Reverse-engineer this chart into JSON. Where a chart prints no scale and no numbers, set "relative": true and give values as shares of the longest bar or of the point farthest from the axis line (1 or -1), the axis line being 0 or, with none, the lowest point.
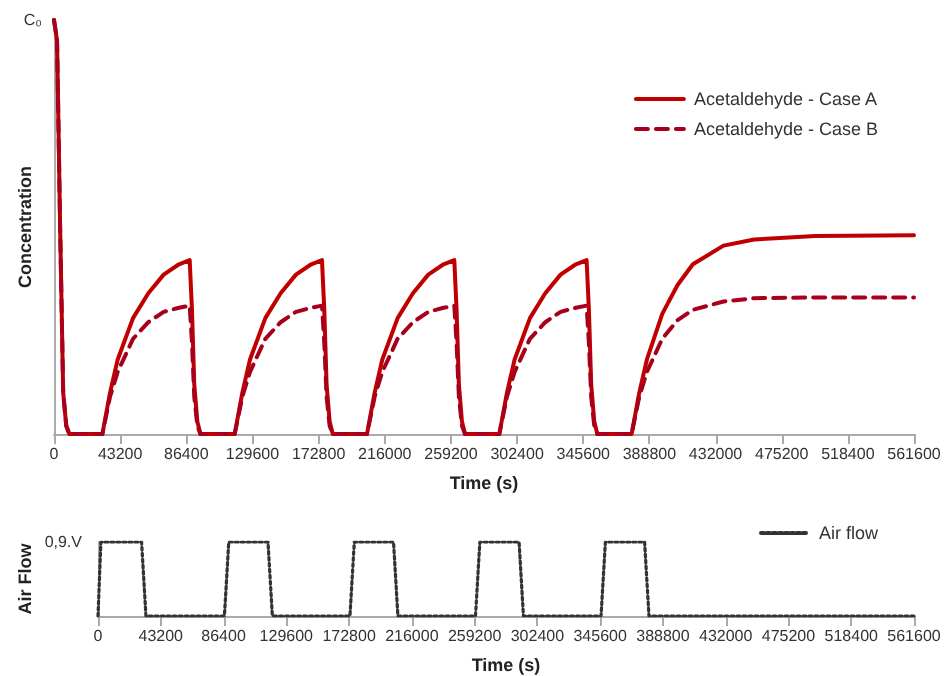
{
  "chart_data": [
    {
      "type": "line",
      "relative": true,
      "xlabel": "Time (s)",
      "ylabel": "Concentration",
      "xlim": [
        0,
        561600
      ],
      "xticks": [
        0,
        43200,
        86400,
        129600,
        172800,
        216000,
        259200,
        302400,
        345600,
        388800,
        432000,
        475200,
        518400,
        561600
      ],
      "grid": false,
      "legend": "top right",
      "marker": "none",
      "annotations": [
        "C₀"
      ],
      "series": [
        {
          "name": "Acetaldehyde - Case A",
          "color": "#c00000",
          "line_style": "solid",
          "x": [
            0,
            2000,
            4000,
            6000,
            8000,
            10000,
            31600,
            36600,
            41600,
            51600,
            61600,
            71600,
            81600,
            88600,
            90100,
            91600,
            93600,
            95600,
            118000,
            123000,
            128000,
            138000,
            148000,
            158000,
            168000,
            175000,
            176500,
            178000,
            180000,
            182000,
            204400,
            209400,
            214400,
            224400,
            234400,
            244400,
            254400,
            261400,
            262900,
            264400,
            266400,
            268400,
            290800,
            295800,
            300800,
            310800,
            320800,
            330800,
            340800,
            347800,
            349300,
            350800,
            352800,
            354800,
            377200,
            382200,
            387200,
            397200,
            407200,
            417200,
            437200,
            457200,
            497200,
            561600
          ],
          "values": [
            1,
            0.95,
            0.5,
            0.1,
            0.02,
            0,
            0,
            0.1,
            0.18,
            0.28,
            0.34,
            0.385,
            0.41,
            0.42,
            0.3,
            0.12,
            0.03,
            0,
            0,
            0.1,
            0.18,
            0.28,
            0.34,
            0.385,
            0.41,
            0.42,
            0.3,
            0.12,
            0.03,
            0,
            0,
            0.1,
            0.18,
            0.28,
            0.34,
            0.385,
            0.41,
            0.42,
            0.3,
            0.12,
            0.03,
            0,
            0,
            0.1,
            0.18,
            0.28,
            0.34,
            0.385,
            0.41,
            0.42,
            0.3,
            0.12,
            0.03,
            0,
            0,
            0.1,
            0.18,
            0.29,
            0.36,
            0.41,
            0.455,
            0.47,
            0.478,
            0.48
          ]
        },
        {
          "name": "Acetaldehyde - Case B",
          "color": "#a8001c",
          "line_style": "dashed",
          "x": [
            0,
            2000,
            4000,
            6000,
            8000,
            10000,
            31600,
            36600,
            41600,
            51600,
            61600,
            71600,
            81600,
            88600,
            90100,
            91600,
            93600,
            95600,
            118000,
            123000,
            128000,
            138000,
            148000,
            158000,
            168000,
            175000,
            176500,
            178000,
            180000,
            182000,
            204400,
            209400,
            214400,
            224400,
            234400,
            244400,
            254400,
            261400,
            262900,
            264400,
            266400,
            268400,
            290800,
            295800,
            300800,
            310800,
            320800,
            330800,
            340800,
            347800,
            349300,
            350800,
            352800,
            354800,
            377200,
            382200,
            387200,
            397200,
            407200,
            417200,
            437200,
            457200,
            497200,
            561600
          ],
          "values": [
            1,
            0.95,
            0.5,
            0.1,
            0.02,
            0,
            0,
            0.09,
            0.15,
            0.23,
            0.27,
            0.295,
            0.305,
            0.31,
            0.22,
            0.09,
            0.02,
            0,
            0,
            0.09,
            0.15,
            0.23,
            0.27,
            0.295,
            0.305,
            0.31,
            0.22,
            0.09,
            0.02,
            0,
            0,
            0.09,
            0.15,
            0.23,
            0.27,
            0.295,
            0.305,
            0.31,
            0.22,
            0.09,
            0.02,
            0,
            0,
            0.09,
            0.15,
            0.23,
            0.27,
            0.295,
            0.305,
            0.31,
            0.22,
            0.09,
            0.02,
            0,
            0,
            0.09,
            0.15,
            0.23,
            0.275,
            0.3,
            0.32,
            0.328,
            0.33,
            0.33
          ]
        }
      ]
    },
    {
      "type": "line",
      "relative": true,
      "xlabel": "Time (s)",
      "ylabel": "Air Flow",
      "xlim": [
        0,
        561600
      ],
      "xticks": [
        0,
        43200,
        86400,
        129600,
        172800,
        216000,
        259200,
        302400,
        345600,
        388800,
        432000,
        475200,
        518400,
        561600
      ],
      "grid": false,
      "legend": "top right",
      "marker": "none",
      "annotations": [
        "0,9.V"
      ],
      "series": [
        {
          "name": "Air flow",
          "color": "#333333",
          "line_style": "dotted",
          "x": [
            0,
            2000,
            30000,
            33000,
            87000,
            90000,
            117000,
            120000,
            173400,
            176400,
            203400,
            206400,
            259800,
            262800,
            289800,
            292800,
            346200,
            349200,
            376200,
            379200,
            561600
          ],
          "values": [
            0,
            1,
            1,
            0,
            0,
            1,
            1,
            0,
            0,
            1,
            1,
            0,
            0,
            1,
            1,
            0,
            0,
            1,
            1,
            0,
            0
          ]
        }
      ]
    }
  ]
}
